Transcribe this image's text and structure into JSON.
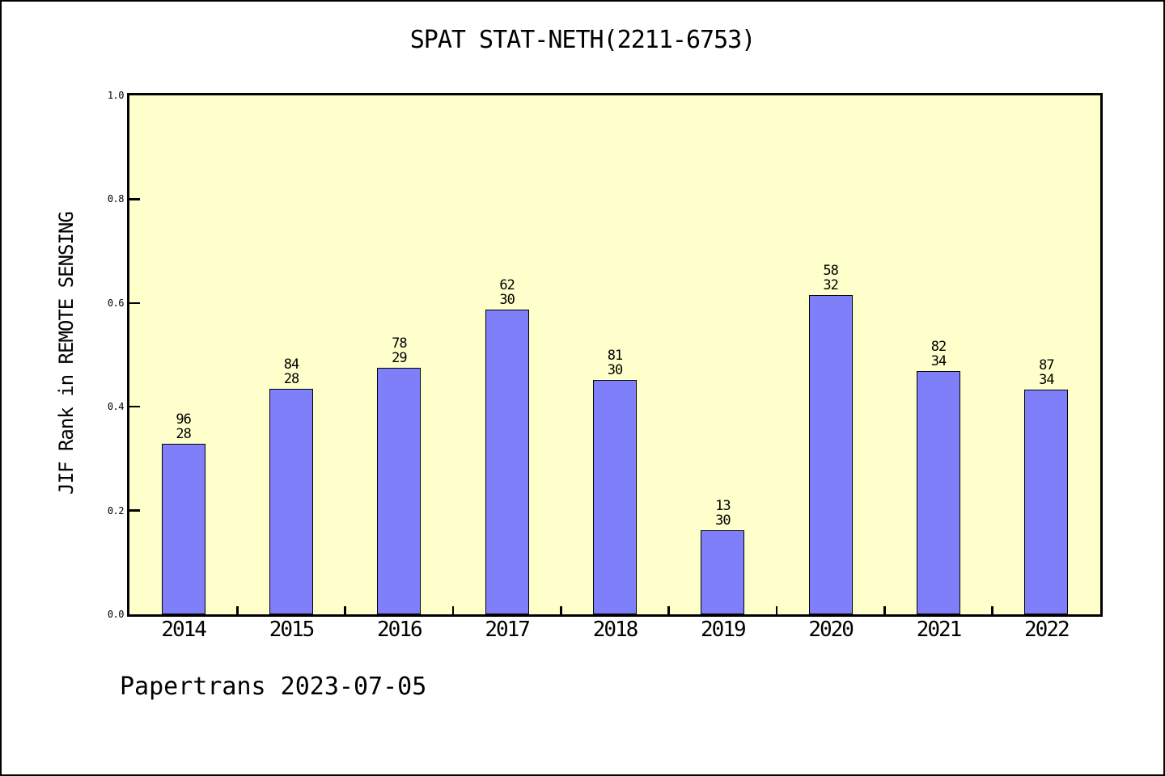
{
  "title": "SPAT STAT-NETH(2211-6753)",
  "footer": "Papertrans 2023-07-05",
  "colors": {
    "bar_fill": "#7f7ffa",
    "bar_edge": "#000000",
    "plot_bg": "#ffffcc",
    "axis": "#000000",
    "page_bg": "#ffffff",
    "text": "#000000"
  },
  "chart_data": {
    "type": "bar",
    "title": "SPAT STAT-NETH(2211-6753)",
    "xlabel": "",
    "ylabel": "JIF Rank in REMOTE SENSING",
    "ylim": [
      0.0,
      1.0
    ],
    "ytick_labels": [
      "0.0",
      "0.2",
      "0.4",
      "0.6",
      "0.8",
      "1.0"
    ],
    "grid": false,
    "legend": false,
    "categories": [
      "2014",
      "2015",
      "2016",
      "2017",
      "2018",
      "2019",
      "2020",
      "2021",
      "2022"
    ],
    "values": [
      0.329,
      0.435,
      0.475,
      0.587,
      0.452,
      0.162,
      0.615,
      0.469,
      0.433
    ],
    "bar_annotations": [
      {
        "line1": "96",
        "line2": "28"
      },
      {
        "line1": "84",
        "line2": "28"
      },
      {
        "line1": "78",
        "line2": "29"
      },
      {
        "line1": "62",
        "line2": "30"
      },
      {
        "line1": "81",
        "line2": "30"
      },
      {
        "line1": "13",
        "line2": "30"
      },
      {
        "line1": "58",
        "line2": "32"
      },
      {
        "line1": "82",
        "line2": "34"
      },
      {
        "line1": "87",
        "line2": "34"
      }
    ]
  }
}
